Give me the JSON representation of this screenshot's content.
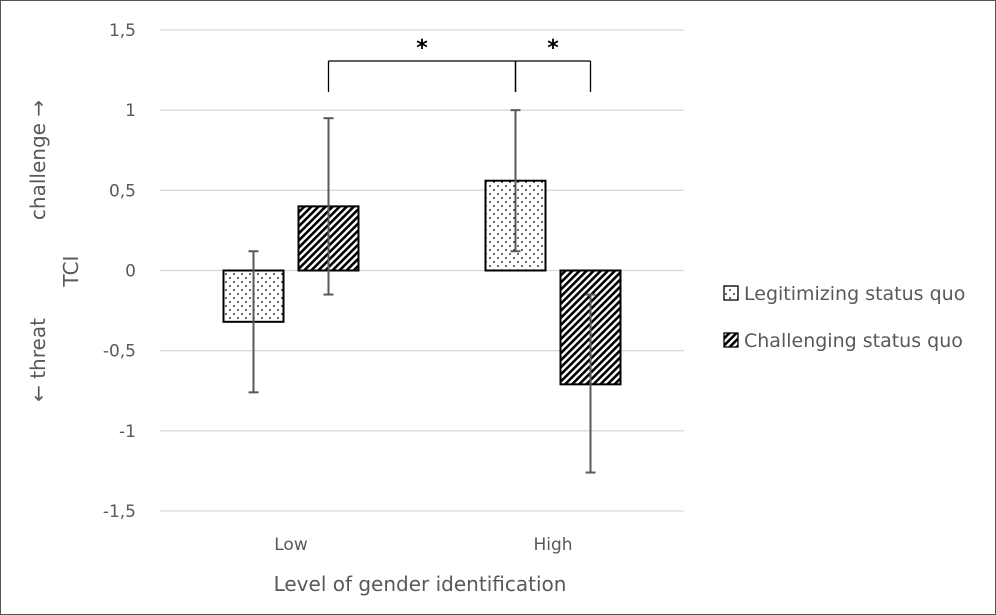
{
  "chart_data": {
    "type": "bar",
    "xlabel": "Level of gender identification",
    "ylabel": "TCI",
    "ylabel_top": "challenge →",
    "ylabel_bottom": "← threat",
    "categories": [
      "Low",
      "High"
    ],
    "ylim": [
      -1.5,
      1.5
    ],
    "yticks": [
      1.5,
      1,
      0.5,
      0,
      -0.5,
      -1,
      -1.5
    ],
    "ytick_labels": [
      "1,5",
      "1",
      "0,5",
      "0",
      "-0,5",
      "-1",
      "-1,5"
    ],
    "grid": true,
    "legend_position": "right",
    "series": [
      {
        "name": "Legitimizing status quo",
        "pattern": "dots",
        "values": [
          -0.32,
          0.56
        ],
        "error_low": [
          -0.76,
          0.12
        ],
        "error_high": [
          0.12,
          1.0
        ]
      },
      {
        "name": "Challenging status quo",
        "pattern": "hatch",
        "values": [
          0.4,
          -0.71
        ],
        "error_low": [
          -0.15,
          -1.26
        ],
        "error_high": [
          0.95,
          -0.15
        ]
      }
    ],
    "annotations": [
      {
        "label": "*",
        "from": {
          "category": 0,
          "series": 1
        },
        "to": {
          "category": 1,
          "series": 0
        }
      },
      {
        "label": "*",
        "from": {
          "category": 1,
          "series": 0
        },
        "to": {
          "category": 1,
          "series": 1
        }
      }
    ]
  }
}
